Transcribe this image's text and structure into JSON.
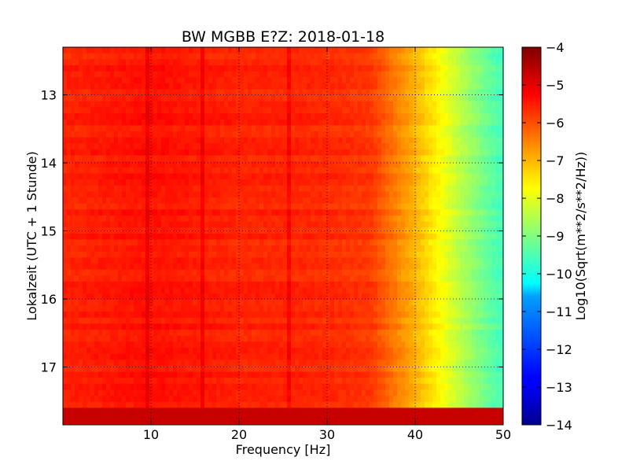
{
  "chart_data": {
    "type": "heatmap",
    "title": "BW MGBB E?Z: 2018-01-18",
    "xlabel": "Frequency [Hz]",
    "ylabel": "Lokalzeit (UTC + 1 Stunde)",
    "xlim": [
      0,
      50
    ],
    "ylim": [
      12.3,
      17.85
    ],
    "y_inverted": true,
    "x_ticks": [
      10,
      20,
      30,
      40,
      50
    ],
    "y_ticks": [
      13,
      14,
      15,
      16,
      17
    ],
    "grid": true,
    "colormap": "jet",
    "colorbar": {
      "label": "Log10(Sqrt(m**2/s**2/Hz))",
      "range": [
        -14,
        -4
      ],
      "ticks": [
        -4,
        -5,
        -6,
        -7,
        -8,
        -9,
        -10,
        -11,
        -12,
        -13,
        -14
      ]
    },
    "spectral_profile": {
      "frequency_hz": [
        0,
        5,
        10,
        15,
        20,
        25,
        30,
        35,
        37,
        40,
        43,
        45,
        48,
        50
      ],
      "level": [
        -5.6,
        -5.5,
        -5.4,
        -5.5,
        -5.6,
        -5.6,
        -5.65,
        -5.8,
        -6.3,
        -7.0,
        -7.8,
        -8.4,
        -9.2,
        -9.6
      ]
    },
    "narrowband_lines_hz": [
      9.5,
      15.8,
      25.5
    ],
    "final_row_level": -4.7
  }
}
